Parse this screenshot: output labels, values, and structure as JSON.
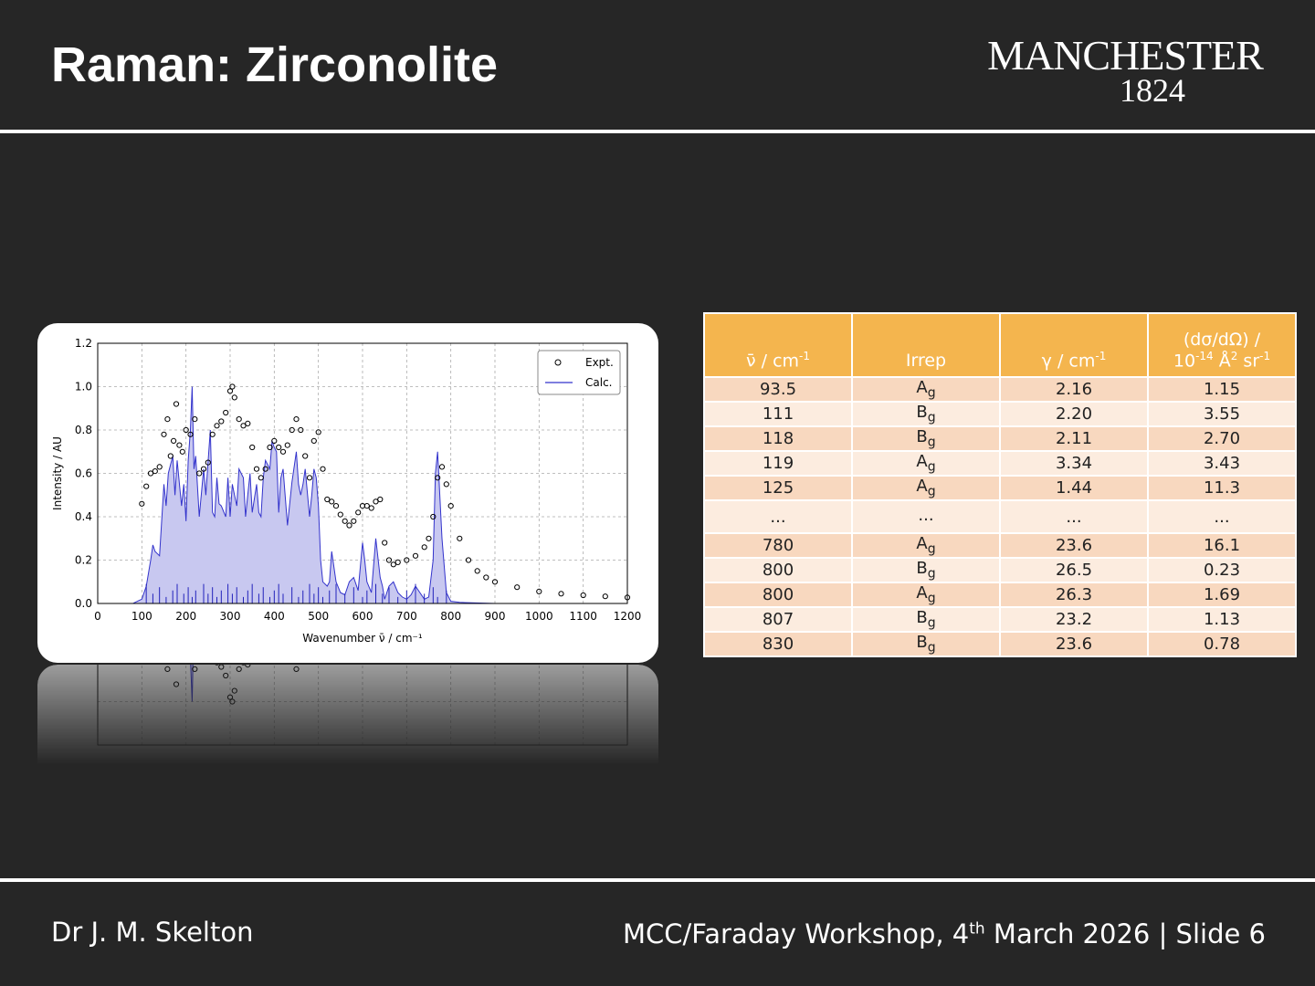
{
  "slide": {
    "title": "Raman: Zirconolite",
    "logo_line1": "MANCHESTER",
    "logo_line2": "1824",
    "author": "Dr J. M. Skelton",
    "event_pre": "MCC/Faraday Workshop, 4",
    "event_sup": "th",
    "event_post": " March 2026 | Slide 6"
  },
  "table": {
    "headers": [
      {
        "main": "ν̄ / cm",
        "sup": "-1"
      },
      {
        "main": "Irrep"
      },
      {
        "main": "γ / cm",
        "sup": "-1"
      },
      {
        "line1": "(dσ/dΩ) /",
        "main": "10",
        "sup": "-14",
        "rest": " Å",
        "sup2": "2",
        "rest2": " sr",
        "sup3": "-1"
      }
    ],
    "rows": [
      {
        "freq": "93.5",
        "irrep": "A",
        "irrep_sub": "g",
        "gamma": "2.16",
        "cs": "1.15"
      },
      {
        "freq": "111",
        "irrep": "B",
        "irrep_sub": "g",
        "gamma": "2.20",
        "cs": "3.55"
      },
      {
        "freq": "118",
        "irrep": "B",
        "irrep_sub": "g",
        "gamma": "2.11",
        "cs": "2.70"
      },
      {
        "freq": "119",
        "irrep": "A",
        "irrep_sub": "g",
        "gamma": "3.34",
        "cs": "3.43"
      },
      {
        "freq": "125",
        "irrep": "A",
        "irrep_sub": "g",
        "gamma": "1.44",
        "cs": "11.3"
      },
      {
        "freq": "...",
        "irrep": "...",
        "irrep_sub": "",
        "gamma": "...",
        "cs": "..."
      },
      {
        "freq": "780",
        "irrep": "A",
        "irrep_sub": "g",
        "gamma": "23.6",
        "cs": "16.1"
      },
      {
        "freq": "800",
        "irrep": "B",
        "irrep_sub": "g",
        "gamma": "26.5",
        "cs": "0.23"
      },
      {
        "freq": "800",
        "irrep": "A",
        "irrep_sub": "g",
        "gamma": "26.3",
        "cs": "1.69"
      },
      {
        "freq": "807",
        "irrep": "B",
        "irrep_sub": "g",
        "gamma": "23.2",
        "cs": "1.13"
      },
      {
        "freq": "830",
        "irrep": "B",
        "irrep_sub": "g",
        "gamma": "23.6",
        "cs": "0.78"
      }
    ]
  },
  "chart_data": {
    "type": "line",
    "title": "",
    "xlabel": "Wavenumber ν̄ / cm⁻¹",
    "ylabel": "Intensity / AU",
    "xlim": [
      0,
      1200
    ],
    "ylim": [
      0,
      1.2
    ],
    "xticks": [
      "0",
      "100",
      "200",
      "300",
      "400",
      "500",
      "600",
      "700",
      "800",
      "900",
      "1000",
      "1100",
      "1200"
    ],
    "yticks": [
      "0.0",
      "0.2",
      "0.4",
      "0.6",
      "0.8",
      "1.0",
      "1.2"
    ],
    "grid": true,
    "legend": "top-right",
    "series": [
      {
        "name": "Expt.",
        "style": "open-circles",
        "color": "#000000",
        "x": [
          100,
          110,
          120,
          130,
          140,
          150,
          158,
          165,
          172,
          178,
          185,
          192,
          200,
          210,
          220,
          230,
          240,
          250,
          260,
          270,
          280,
          290,
          300,
          305,
          310,
          320,
          330,
          340,
          350,
          360,
          370,
          380,
          390,
          400,
          410,
          420,
          430,
          440,
          450,
          460,
          470,
          480,
          490,
          500,
          510,
          520,
          530,
          540,
          550,
          560,
          570,
          580,
          590,
          600,
          610,
          620,
          630,
          640,
          650,
          660,
          670,
          680,
          700,
          720,
          740,
          750,
          760,
          770,
          780,
          790,
          800,
          820,
          840,
          860,
          880,
          900,
          950,
          1000,
          1050,
          1100,
          1150,
          1200
        ],
        "y": [
          0.46,
          0.54,
          0.6,
          0.61,
          0.63,
          0.78,
          0.85,
          0.68,
          0.75,
          0.92,
          0.73,
          0.7,
          0.8,
          0.78,
          0.85,
          0.6,
          0.62,
          0.65,
          0.78,
          0.82,
          0.84,
          0.88,
          0.98,
          1.0,
          0.95,
          0.85,
          0.82,
          0.83,
          0.72,
          0.62,
          0.58,
          0.62,
          0.72,
          0.75,
          0.72,
          0.7,
          0.73,
          0.8,
          0.85,
          0.8,
          0.68,
          0.58,
          0.75,
          0.79,
          0.62,
          0.48,
          0.47,
          0.45,
          0.41,
          0.38,
          0.36,
          0.38,
          0.42,
          0.45,
          0.45,
          0.44,
          0.47,
          0.48,
          0.28,
          0.2,
          0.18,
          0.19,
          0.2,
          0.22,
          0.26,
          0.3,
          0.4,
          0.58,
          0.63,
          0.55,
          0.45,
          0.3,
          0.2,
          0.15,
          0.12,
          0.1,
          0.075,
          0.055,
          0.045,
          0.038,
          0.033,
          0.028
        ]
      },
      {
        "name": "Calc.",
        "style": "line-filled",
        "color": "#3333cc",
        "fill": "#c8c8f0",
        "x": [
          0,
          80,
          90,
          100,
          110,
          120,
          125,
          130,
          140,
          150,
          155,
          160,
          170,
          175,
          180,
          190,
          195,
          200,
          205,
          210,
          214,
          218,
          222,
          230,
          240,
          245,
          250,
          255,
          260,
          265,
          270,
          275,
          280,
          290,
          295,
          300,
          305,
          310,
          315,
          320,
          330,
          335,
          340,
          345,
          350,
          360,
          365,
          370,
          375,
          380,
          390,
          395,
          400,
          405,
          410,
          415,
          420,
          430,
          440,
          450,
          455,
          460,
          465,
          470,
          480,
          485,
          490,
          495,
          500,
          505,
          510,
          520,
          525,
          530,
          540,
          550,
          560,
          570,
          580,
          590,
          600,
          605,
          610,
          620,
          630,
          640,
          645,
          650,
          660,
          670,
          680,
          690,
          700,
          710,
          720,
          730,
          740,
          750,
          760,
          765,
          770,
          780,
          790,
          800,
          820,
          900,
          1000,
          1200
        ],
        "y": [
          0,
          0,
          0.01,
          0.02,
          0.08,
          0.2,
          0.27,
          0.24,
          0.22,
          0.55,
          0.45,
          0.6,
          0.68,
          0.5,
          0.66,
          0.45,
          0.55,
          0.38,
          0.66,
          0.8,
          1.0,
          0.62,
          0.68,
          0.4,
          0.62,
          0.5,
          0.65,
          0.8,
          0.42,
          0.4,
          0.58,
          0.46,
          0.45,
          0.4,
          0.58,
          0.4,
          0.55,
          0.5,
          0.45,
          0.62,
          0.58,
          0.4,
          0.5,
          0.6,
          0.42,
          0.55,
          0.42,
          0.4,
          0.58,
          0.66,
          0.62,
          0.75,
          0.72,
          0.7,
          0.42,
          0.58,
          0.62,
          0.36,
          0.56,
          0.7,
          0.55,
          0.5,
          0.55,
          0.62,
          0.4,
          0.5,
          0.62,
          0.58,
          0.45,
          0.2,
          0.1,
          0.08,
          0.1,
          0.24,
          0.1,
          0.05,
          0.04,
          0.1,
          0.12,
          0.06,
          0.28,
          0.2,
          0.1,
          0.05,
          0.3,
          0.12,
          0.08,
          0.02,
          0.08,
          0.1,
          0.05,
          0.03,
          0.02,
          0.04,
          0.08,
          0.05,
          0.02,
          0.03,
          0.2,
          0.6,
          0.7,
          0.3,
          0.05,
          0.01,
          0.005,
          0,
          0,
          0
        ]
      }
    ]
  }
}
